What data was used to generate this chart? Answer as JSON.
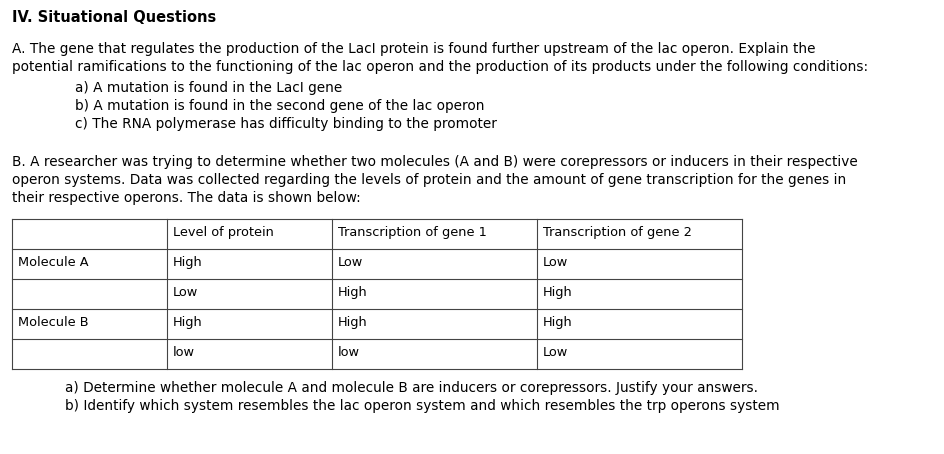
{
  "title": "IV. Situational Questions",
  "sA_l1": "A. The gene that regulates the production of the LacI protein is found further upstream of the lac operon. Explain the",
  "sA_l2": "potential ramifications to the functioning of the lac operon and the production of its products under the following conditions:",
  "item_a": "a) A mutation is found in the LacI gene",
  "item_b": "b) A mutation is found in the second gene of the lac operon",
  "item_c": "c) The RNA polymerase has difficulty binding to the promoter",
  "sB_l1": "B. A researcher was trying to determine whether two molecules (A and B) were corepressors or inducers in their respective",
  "sB_l2": "operon systems. Data was collected regarding the levels of protein and the amount of gene transcription for the genes in",
  "sB_l3": "their respective operons. The data is shown below:",
  "table_headers": [
    "",
    "Level of protein",
    "Transcription of gene 1",
    "Transcription of gene 2"
  ],
  "table_rows": [
    [
      "Molecule A",
      "High",
      "Low",
      "Low"
    ],
    [
      "",
      "Low",
      "High",
      "High"
    ],
    [
      "Molecule B",
      "High",
      "High",
      "High"
    ],
    [
      "",
      "low",
      "low",
      "Low"
    ]
  ],
  "footer_a": "a) Determine whether molecule A and molecule B are inducers or corepressors. Justify your answers.",
  "footer_b": "b) Identify which system resembles the lac operon system and which resembles the trp operons system",
  "bg_color": "#ffffff",
  "text_color": "#000000",
  "font_size": 9.8,
  "title_font_size": 10.5
}
